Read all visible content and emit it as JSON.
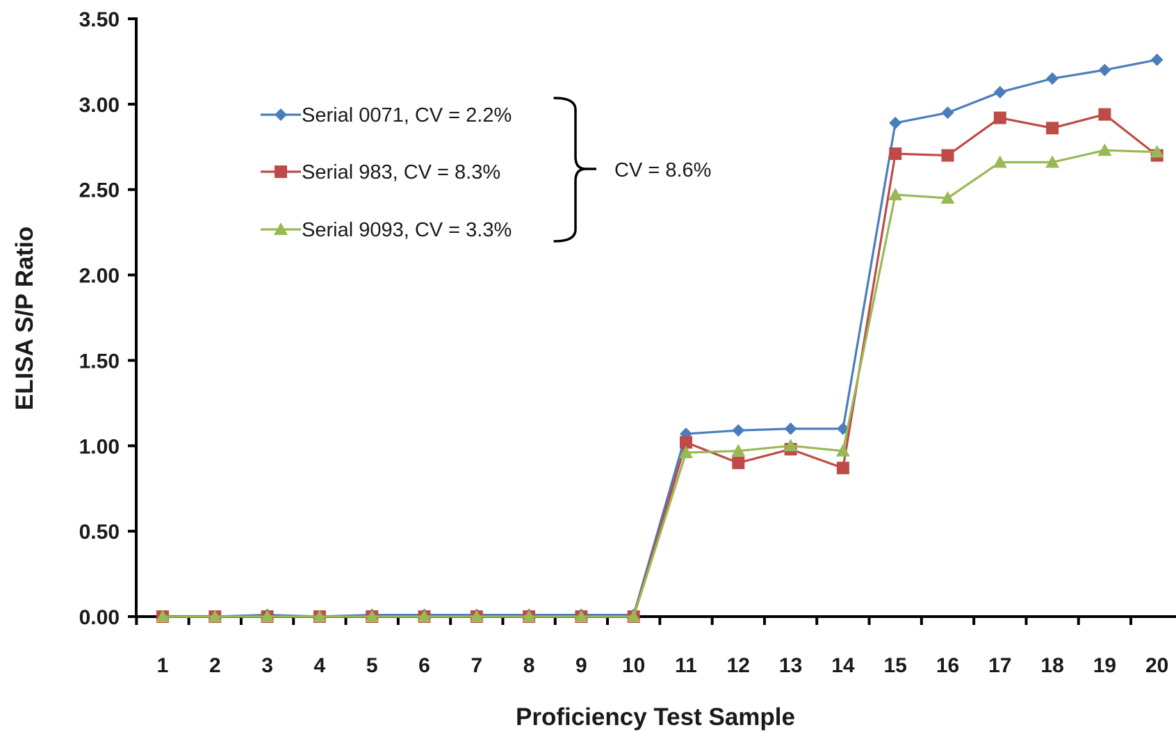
{
  "chart_data": {
    "type": "line",
    "xlabel": "Proficiency Test Sample",
    "ylabel": "ELISA S/P Ratio",
    "x": [
      1,
      2,
      3,
      4,
      5,
      6,
      7,
      8,
      9,
      10,
      11,
      12,
      13,
      14,
      15,
      16,
      17,
      18,
      19,
      20
    ],
    "x_tick_labels": [
      "1",
      "2",
      "3",
      "4",
      "5",
      "6",
      "7",
      "8",
      "9",
      "10",
      "11",
      "12",
      "13",
      "14",
      "15",
      "16",
      "17",
      "18",
      "19",
      "20"
    ],
    "ylim": [
      0,
      3.5
    ],
    "y_ticks": [
      0,
      0.5,
      1.0,
      1.5,
      2.0,
      2.5,
      3.0,
      3.5
    ],
    "y_tick_labels": [
      "0.00",
      "0.50",
      "1.00",
      "1.50",
      "2.00",
      "2.50",
      "3.00",
      "3.50"
    ],
    "grid": false,
    "legend_position": "top-left",
    "series": [
      {
        "name": "Serial 0071, CV = 2.2%",
        "color": "#4a7ebb",
        "marker": "diamond",
        "values": [
          0.0,
          0.0,
          0.01,
          0.0,
          0.01,
          0.01,
          0.01,
          0.01,
          0.01,
          0.01,
          1.07,
          1.09,
          1.1,
          1.1,
          2.89,
          2.95,
          3.07,
          3.15,
          3.2,
          3.26
        ]
      },
      {
        "name": "Serial 983, CV = 8.3%",
        "color": "#be4b48",
        "marker": "square",
        "values": [
          0.0,
          0.0,
          0.0,
          0.0,
          0.0,
          0.0,
          0.0,
          0.0,
          0.0,
          0.0,
          1.02,
          0.9,
          0.98,
          0.87,
          2.71,
          2.7,
          2.92,
          2.86,
          2.94,
          2.7
        ]
      },
      {
        "name": "Serial 9093, CV = 3.3%",
        "color": "#98b954",
        "marker": "triangle",
        "values": [
          0.0,
          0.0,
          0.0,
          0.0,
          0.0,
          0.0,
          0.0,
          0.0,
          0.0,
          0.0,
          0.96,
          0.97,
          1.0,
          0.97,
          2.47,
          2.45,
          2.66,
          2.66,
          2.73,
          2.72
        ]
      }
    ],
    "annotations": [
      {
        "text": "CV =  8.6%"
      }
    ]
  }
}
